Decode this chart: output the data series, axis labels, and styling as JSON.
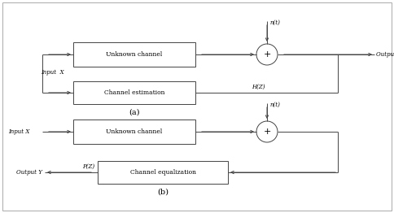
{
  "bg_color": "#ffffff",
  "border_color": "#888888",
  "text_color": "#000000",
  "diagram_a": {
    "label": "(a)",
    "input_label": "Input  X",
    "output_label": "Output Y",
    "noise_label": "n(t)",
    "box1_label": "Unknown channel",
    "box2_label": "Channel estimation",
    "hz_label": "H(Z)"
  },
  "diagram_b": {
    "label": "(b)",
    "input_label": "Input X",
    "output_label": "Output Y",
    "noise_label": "n(t)",
    "box1_label": "Unknown channel",
    "box2_label": "Channel equalization",
    "pz_label": "P(Z)"
  }
}
